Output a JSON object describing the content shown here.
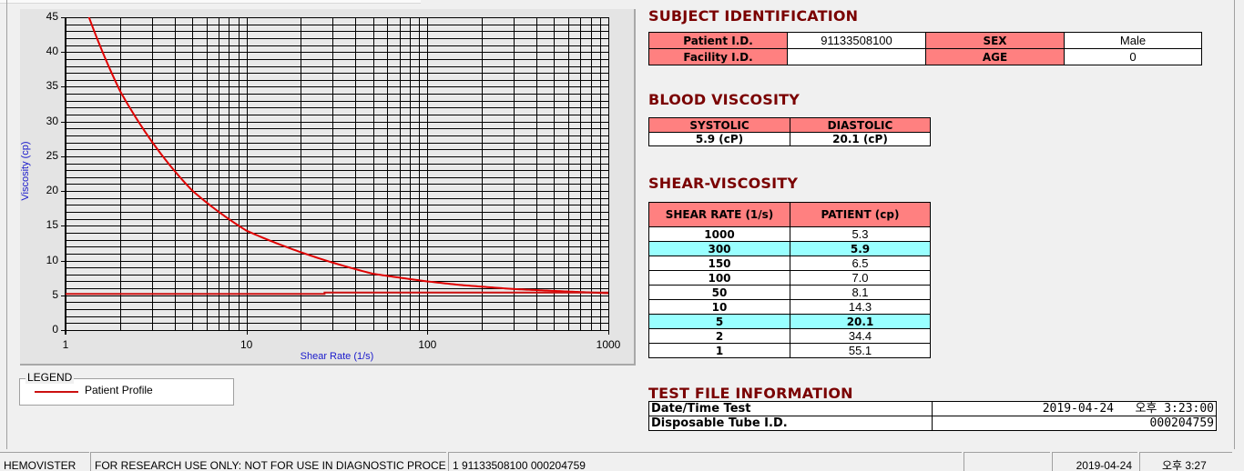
{
  "chart_data": {
    "type": "line",
    "xlabel": "Shear Rate (1/s)",
    "ylabel": "Viscosity (cp)",
    "xscale": "log",
    "xlim": [
      1,
      1000
    ],
    "ylim": [
      0,
      45
    ],
    "xticks": [
      "1",
      "10",
      "100",
      "1000"
    ],
    "yticks": [
      "0",
      "5",
      "10",
      "15",
      "20",
      "25",
      "30",
      "35",
      "40",
      "45"
    ],
    "grid": true,
    "legend_title": "LEGEND",
    "legend_placement": "bottom-left",
    "series": [
      {
        "name": "Patient Profile",
        "color": "#e00000",
        "x": [
          1,
          2,
          5,
          10,
          50,
          100,
          150,
          300,
          1000
        ],
        "y": [
          55.1,
          34.4,
          20.1,
          14.3,
          8.1,
          7.0,
          6.5,
          5.9,
          5.3
        ]
      },
      {
        "color": "#cc1010",
        "x": [
          1,
          27,
          27,
          1000
        ],
        "y": [
          5.2,
          5.2,
          5.4,
          5.4
        ]
      }
    ]
  },
  "subject": {
    "title": "SUBJECT IDENTIFICATION",
    "patient_id_label": "Patient I.D.",
    "patient_id": "91133508100",
    "sex_label": "SEX",
    "sex": "Male",
    "facility_label": "Facility I.D.",
    "facility": "",
    "age_label": "AGE",
    "age": "0"
  },
  "blood": {
    "title": "BLOOD VISCOSITY",
    "systolic_label": "SYSTOLIC",
    "diastolic_label": "DIASTOLIC",
    "systolic": "5.9 (cP)",
    "diastolic": "20.1 (cP)"
  },
  "shear": {
    "title": "SHEAR-VISCOSITY",
    "col1": "SHEAR RATE (1/s)",
    "col2": "PATIENT (cp)",
    "highlight_color": "#99ffff",
    "rows": [
      {
        "rate": "1000",
        "value": "5.3",
        "hl": false
      },
      {
        "rate": "300",
        "value": "5.9",
        "hl": true
      },
      {
        "rate": "150",
        "value": "6.5",
        "hl": false
      },
      {
        "rate": "100",
        "value": "7.0",
        "hl": false
      },
      {
        "rate": "50",
        "value": "8.1",
        "hl": false
      },
      {
        "rate": "10",
        "value": "14.3",
        "hl": false
      },
      {
        "rate": "5",
        "value": "20.1",
        "hl": true
      },
      {
        "rate": "2",
        "value": "34.4",
        "hl": false
      },
      {
        "rate": "1",
        "value": "55.1",
        "hl": false
      }
    ]
  },
  "testfile": {
    "title": "TEST FILE INFORMATION",
    "datetime_label": "Date/Time Test",
    "datetime": "2019-04-24   오후 3:23:00",
    "tube_label": "Disposable Tube I.D.",
    "tube": "000204759"
  },
  "statusbar": {
    "app": "HEMOVISTER",
    "notice": "FOR RESEARCH USE ONLY: NOT FOR USE IN DIAGNOSTIC PROCEDURES",
    "record": "1  91133508100  000204759",
    "empty": "",
    "date": "2019-04-24",
    "time": "오후 3:27"
  }
}
